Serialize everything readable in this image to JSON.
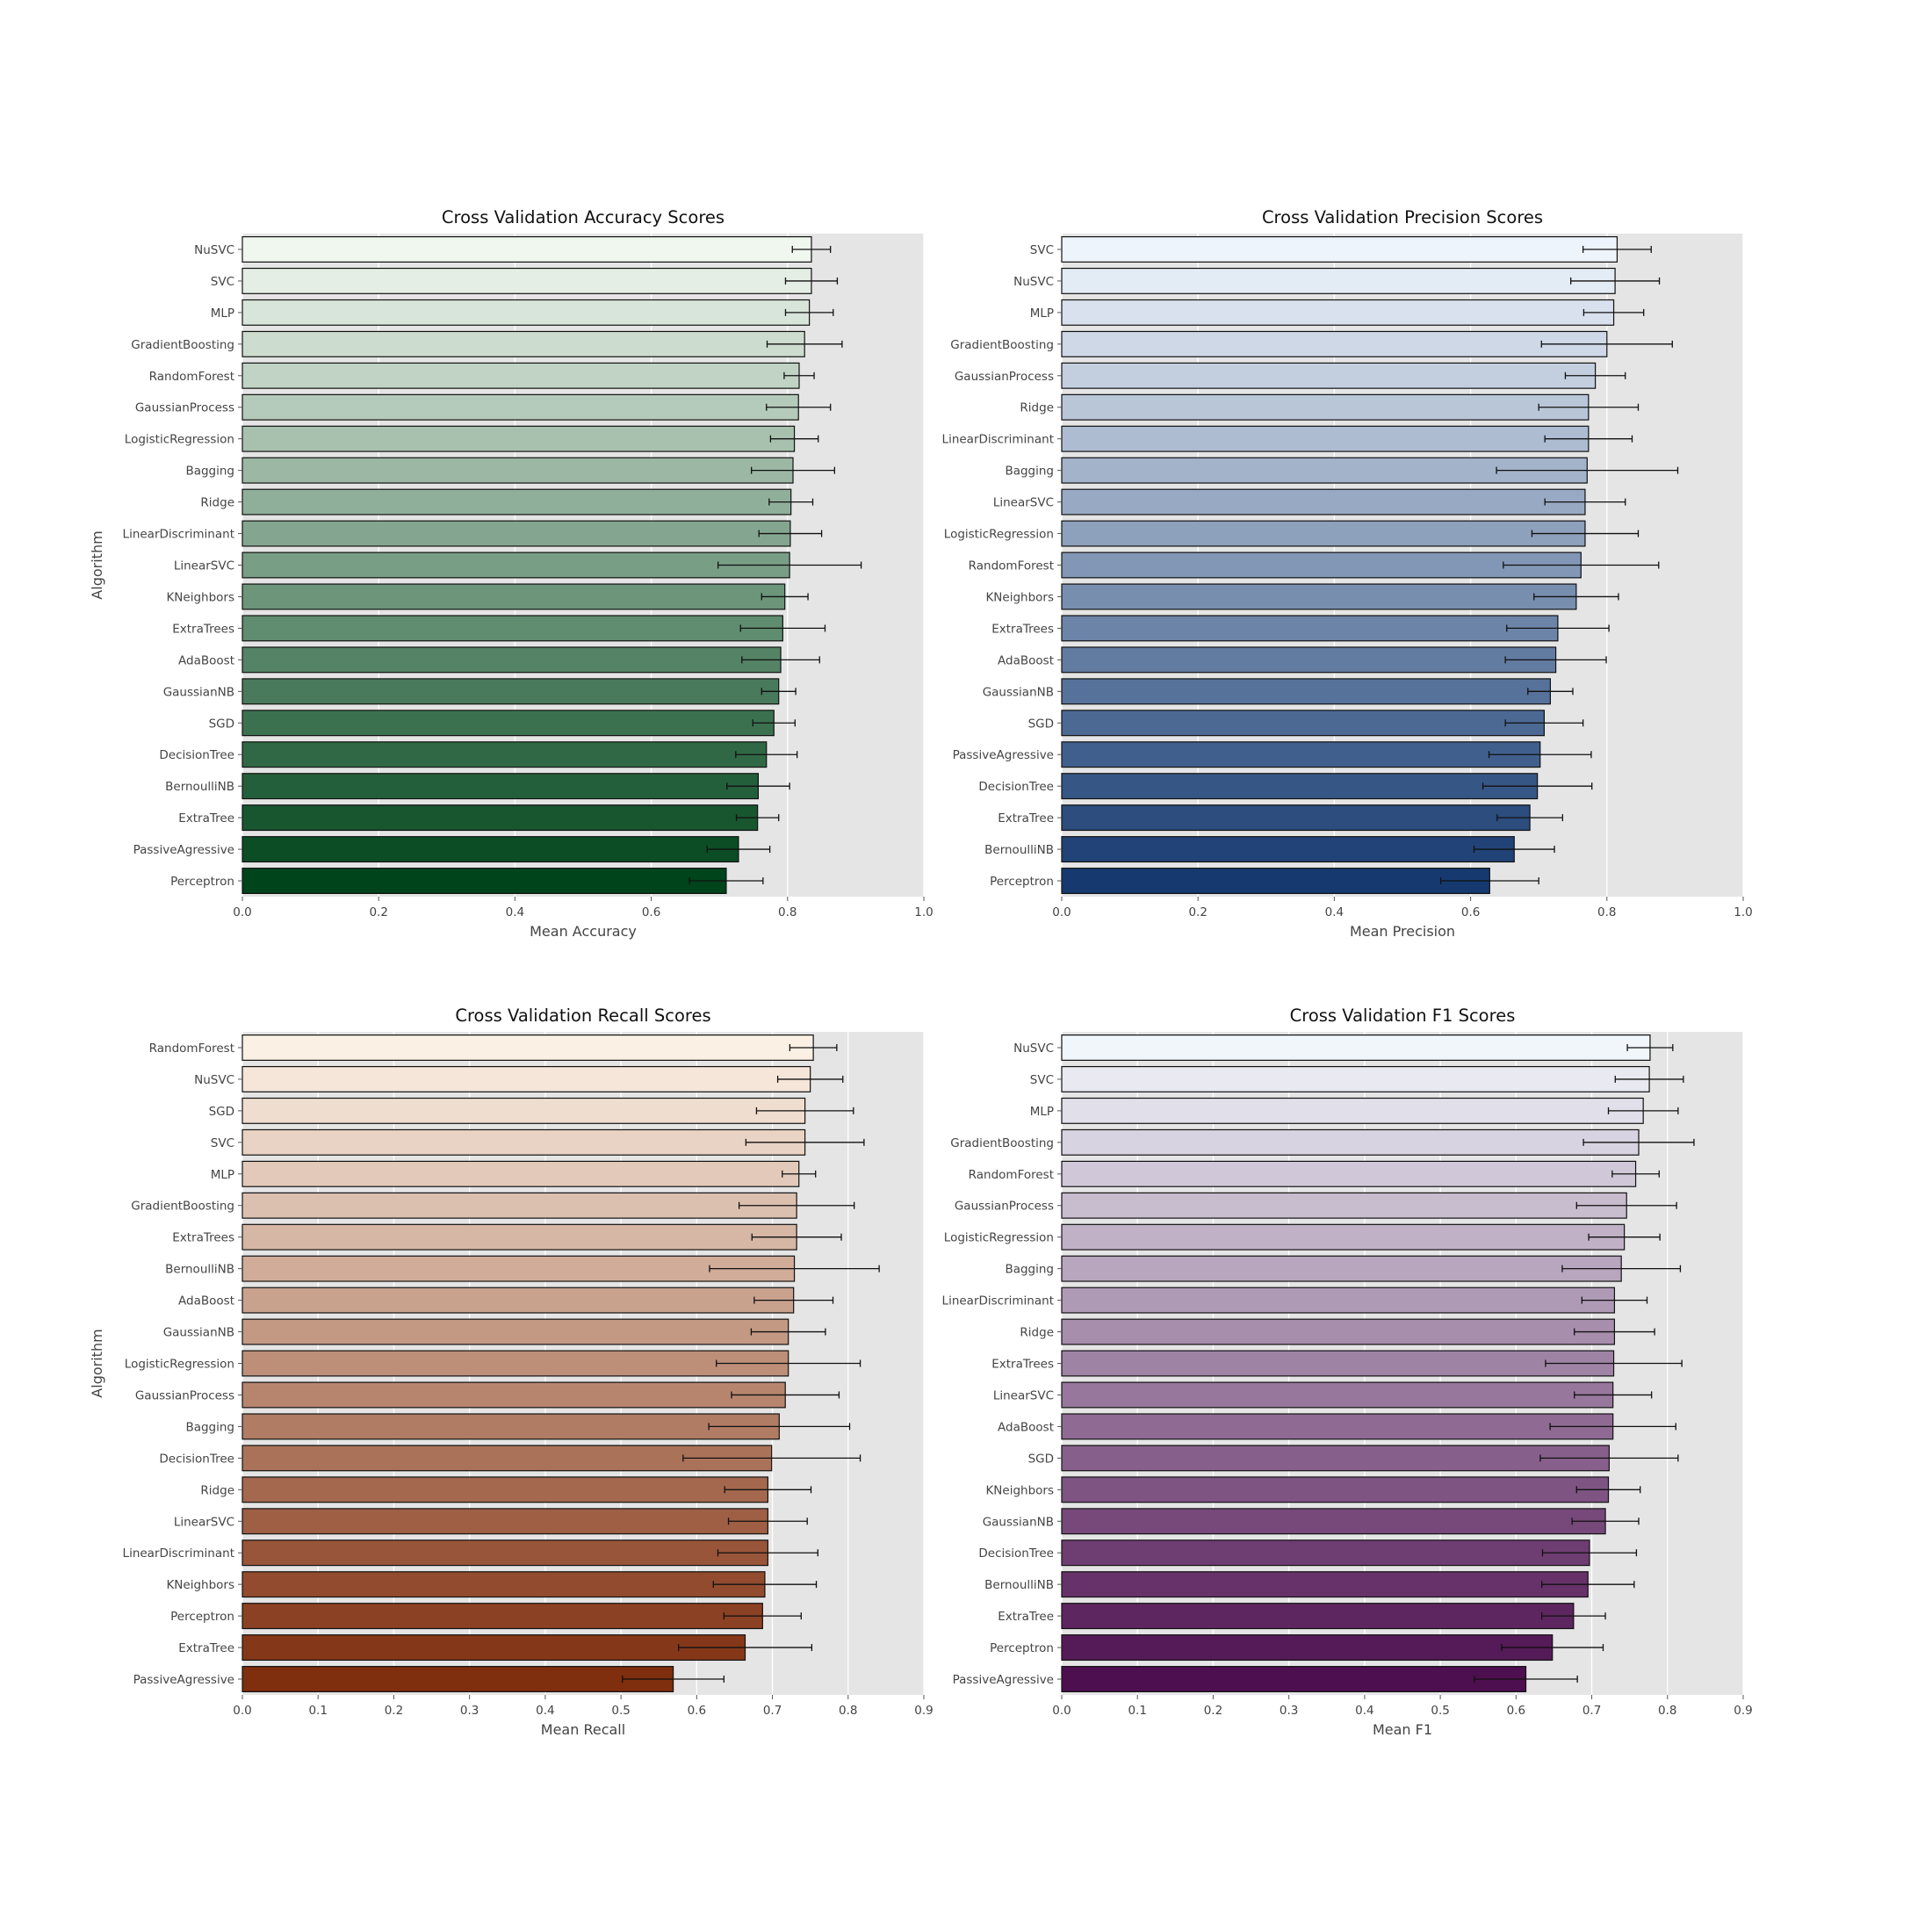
{
  "chart_data": [
    {
      "type": "bar",
      "orientation": "horizontal",
      "title": "Cross Validation Accuracy Scores",
      "xlabel": "Mean Accuracy",
      "ylabel": "Algorithm",
      "xlim": [
        0,
        1.0
      ],
      "xticks": [
        "0.0",
        "0.2",
        "0.4",
        "0.6",
        "0.8",
        "1.0"
      ],
      "palette": [
        "#f0f7ef",
        "#00441b"
      ],
      "grid": true,
      "categories": [
        "NuSVC",
        "SVC",
        "MLP",
        "GradientBoosting",
        "RandomForest",
        "GaussianProcess",
        "LogisticRegression",
        "Bagging",
        "Ridge",
        "LinearDiscriminant",
        "LinearSVC",
        "KNeighbors",
        "ExtraTrees",
        "AdaBoost",
        "GaussianNB",
        "SGD",
        "DecisionTree",
        "BernoulliNB",
        "ExtraTree",
        "PassiveAgressive",
        "Perceptron"
      ],
      "values": [
        0.835,
        0.835,
        0.832,
        0.825,
        0.817,
        0.816,
        0.81,
        0.808,
        0.805,
        0.804,
        0.803,
        0.796,
        0.793,
        0.79,
        0.787,
        0.78,
        0.769,
        0.757,
        0.756,
        0.728,
        0.71
      ],
      "errors": [
        0.028,
        0.038,
        0.035,
        0.055,
        0.022,
        0.047,
        0.035,
        0.061,
        0.032,
        0.046,
        0.105,
        0.034,
        0.062,
        0.057,
        0.025,
        0.031,
        0.045,
        0.046,
        0.031,
        0.046,
        0.054
      ]
    },
    {
      "type": "bar",
      "orientation": "horizontal",
      "title": "Cross Validation Precision Scores",
      "xlabel": "Mean Precision",
      "ylabel": "",
      "xlim": [
        0,
        1.0
      ],
      "xticks": [
        "0.0",
        "0.2",
        "0.4",
        "0.6",
        "0.8",
        "1.0"
      ],
      "palette": [
        "#eef4fb",
        "#163a70"
      ],
      "grid": true,
      "categories": [
        "SVC",
        "NuSVC",
        "MLP",
        "GradientBoosting",
        "GaussianProcess",
        "Ridge",
        "LinearDiscriminant",
        "Bagging",
        "LinearSVC",
        "LogisticRegression",
        "RandomForest",
        "KNeighbors",
        "ExtraTrees",
        "AdaBoost",
        "GaussianNB",
        "SGD",
        "PassiveAgressive",
        "DecisionTree",
        "ExtraTree",
        "BernoulliNB",
        "Perceptron"
      ],
      "values": [
        0.815,
        0.812,
        0.81,
        0.8,
        0.783,
        0.773,
        0.773,
        0.771,
        0.768,
        0.768,
        0.762,
        0.755,
        0.728,
        0.725,
        0.717,
        0.708,
        0.702,
        0.698,
        0.687,
        0.664,
        0.628
      ],
      "errors": [
        0.05,
        0.065,
        0.044,
        0.096,
        0.044,
        0.073,
        0.064,
        0.133,
        0.059,
        0.078,
        0.114,
        0.062,
        0.075,
        0.074,
        0.033,
        0.057,
        0.075,
        0.08,
        0.048,
        0.059,
        0.072
      ]
    },
    {
      "type": "bar",
      "orientation": "horizontal",
      "title": "Cross Validation Recall Scores",
      "xlabel": "Mean Recall",
      "ylabel": "Algorithm",
      "xlim": [
        0,
        0.9
      ],
      "xticks": [
        "0.0",
        "0.1",
        "0.2",
        "0.3",
        "0.4",
        "0.5",
        "0.6",
        "0.7",
        "0.8",
        "0.9"
      ],
      "palette": [
        "#fbf0e4",
        "#7f2e0e"
      ],
      "grid": true,
      "categories": [
        "RandomForest",
        "NuSVC",
        "SGD",
        "SVC",
        "MLP",
        "GradientBoosting",
        "ExtraTrees",
        "BernoulliNB",
        "AdaBoost",
        "GaussianNB",
        "LogisticRegression",
        "GaussianProcess",
        "Bagging",
        "DecisionTree",
        "Ridge",
        "LinearSVC",
        "LinearDiscriminant",
        "KNeighbors",
        "Perceptron",
        "ExtraTree",
        "PassiveAgressive"
      ],
      "values": [
        0.754,
        0.75,
        0.743,
        0.743,
        0.735,
        0.732,
        0.732,
        0.729,
        0.728,
        0.721,
        0.721,
        0.717,
        0.709,
        0.699,
        0.694,
        0.694,
        0.694,
        0.69,
        0.687,
        0.664,
        0.569
      ],
      "errors": [
        0.031,
        0.043,
        0.064,
        0.078,
        0.022,
        0.076,
        0.059,
        0.112,
        0.052,
        0.049,
        0.095,
        0.071,
        0.093,
        0.117,
        0.057,
        0.052,
        0.066,
        0.068,
        0.051,
        0.088,
        0.067
      ]
    },
    {
      "type": "bar",
      "orientation": "horizontal",
      "title": "Cross Validation F1 Scores",
      "xlabel": "Mean F1",
      "ylabel": "",
      "xlim": [
        0,
        0.9
      ],
      "xticks": [
        "0.0",
        "0.1",
        "0.2",
        "0.3",
        "0.4",
        "0.5",
        "0.6",
        "0.7",
        "0.8",
        "0.9"
      ],
      "palette": [
        "#f1f6fa",
        "#4d0f4f"
      ],
      "grid": true,
      "categories": [
        "NuSVC",
        "SVC",
        "MLP",
        "GradientBoosting",
        "RandomForest",
        "GaussianProcess",
        "LogisticRegression",
        "Bagging",
        "LinearDiscriminant",
        "Ridge",
        "ExtraTrees",
        "LinearSVC",
        "AdaBoost",
        "SGD",
        "KNeighbors",
        "GaussianNB",
        "DecisionTree",
        "BernoulliNB",
        "ExtraTree",
        "Perceptron",
        "PassiveAgressive"
      ],
      "values": [
        0.777,
        0.776,
        0.768,
        0.762,
        0.758,
        0.746,
        0.743,
        0.739,
        0.73,
        0.73,
        0.729,
        0.728,
        0.728,
        0.723,
        0.722,
        0.718,
        0.697,
        0.695,
        0.676,
        0.648,
        0.613
      ],
      "errors": [
        0.03,
        0.045,
        0.046,
        0.073,
        0.031,
        0.066,
        0.047,
        0.078,
        0.043,
        0.053,
        0.09,
        0.051,
        0.083,
        0.091,
        0.042,
        0.044,
        0.062,
        0.061,
        0.042,
        0.067,
        0.068
      ]
    }
  ]
}
